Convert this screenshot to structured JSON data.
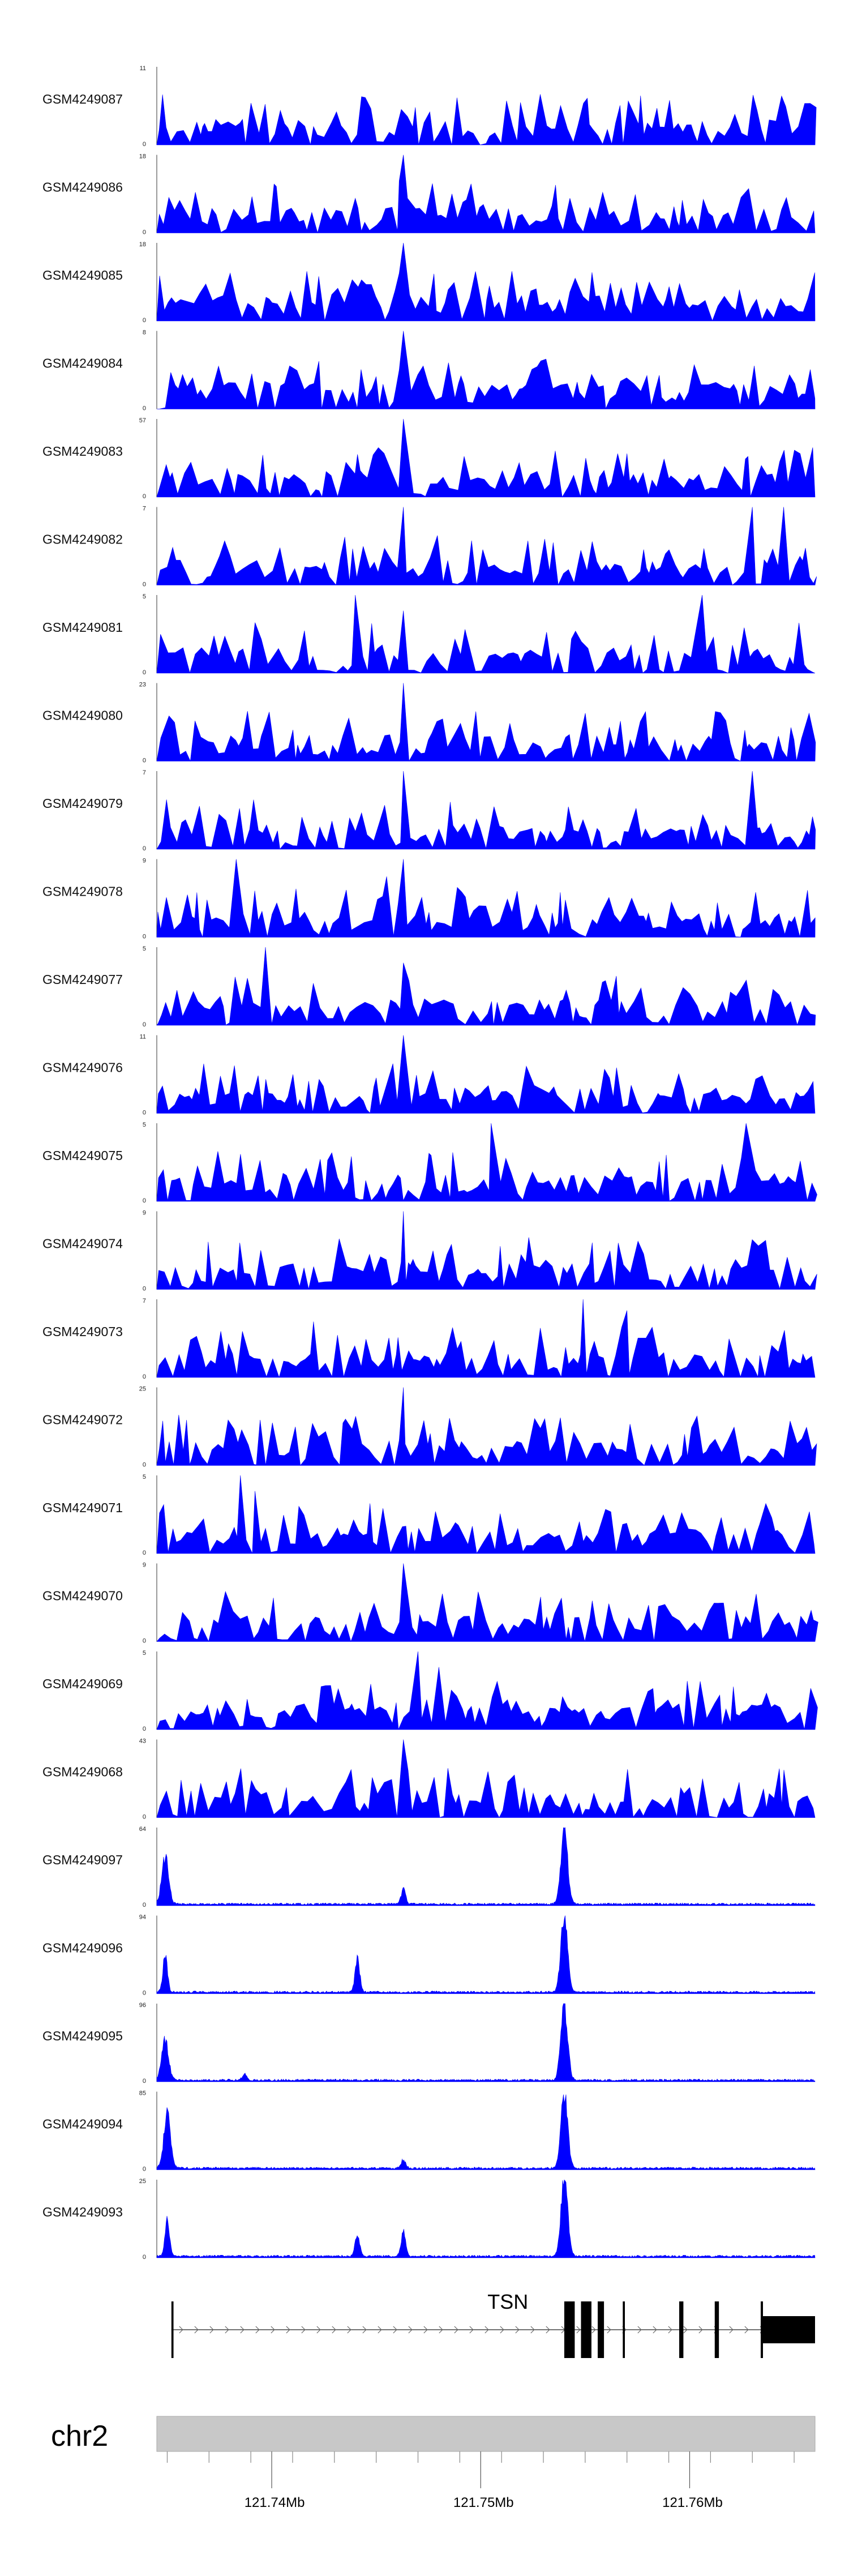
{
  "chart_data": {
    "type": "area",
    "chromosome": "chr2",
    "region_mb": [
      121.7345,
      121.766
    ],
    "x_ticks": [
      121.74,
      121.75,
      121.76
    ],
    "x_tick_labels": [
      "121.74Mb",
      "121.75Mb",
      "121.76Mb"
    ],
    "fill_color": "#0000ff",
    "tracks": [
      {
        "name": "GSM4249087",
        "ymin": 0,
        "ymax": 11,
        "profile": "noisy",
        "peaks": [
          [
            121.7463,
            11
          ],
          [
            121.7462,
            5
          ],
          [
            121.7465,
            4
          ]
        ]
      },
      {
        "name": "GSM4249086",
        "ymin": 0,
        "ymax": 18,
        "profile": "noisy",
        "peaks": [
          [
            121.7463,
            18
          ],
          [
            121.7461,
            12
          ],
          [
            121.7465,
            8
          ],
          [
            121.744,
            8
          ]
        ]
      },
      {
        "name": "GSM4249085",
        "ymin": 0,
        "ymax": 18,
        "profile": "noisy",
        "peaks": [
          [
            121.7463,
            18
          ],
          [
            121.7461,
            11
          ],
          [
            121.7459,
            7
          ],
          [
            121.7466,
            6
          ]
        ]
      },
      {
        "name": "GSM4249084",
        "ymin": 0,
        "ymax": 8,
        "profile": "noisy",
        "peaks": [
          [
            121.7463,
            8
          ],
          [
            121.7461,
            4
          ]
        ]
      },
      {
        "name": "GSM4249083",
        "ymin": 0,
        "ymax": 57,
        "profile": "noisy",
        "peaks": [
          [
            121.7463,
            57
          ]
        ]
      },
      {
        "name": "GSM4249082",
        "ymin": 0,
        "ymax": 7,
        "profile": "noisy",
        "peaks": [
          [
            121.7463,
            7
          ],
          [
            121.763,
            7
          ],
          [
            121.7645,
            7
          ]
        ]
      },
      {
        "name": "GSM4249081",
        "ymin": 0,
        "ymax": 5,
        "profile": "noisy",
        "peaks": [
          [
            121.744,
            5
          ],
          [
            121.7606,
            5
          ],
          [
            121.7463,
            4
          ]
        ]
      },
      {
        "name": "GSM4249080",
        "ymin": 0,
        "ymax": 23,
        "profile": "noisy",
        "peaks": [
          [
            121.7463,
            23
          ]
        ]
      },
      {
        "name": "GSM4249079",
        "ymin": 0,
        "ymax": 7,
        "profile": "noisy",
        "peaks": [
          [
            121.7463,
            7
          ],
          [
            121.763,
            7
          ]
        ]
      },
      {
        "name": "GSM4249078",
        "ymin": 0,
        "ymax": 9,
        "profile": "noisy",
        "peaks": [
          [
            121.7383,
            9
          ],
          [
            121.7463,
            9
          ],
          [
            121.7455,
            7
          ]
        ]
      },
      {
        "name": "GSM4249077",
        "ymin": 0,
        "ymax": 5,
        "profile": "noisy",
        "peaks": [
          [
            121.7397,
            5
          ],
          [
            121.7463,
            4
          ]
        ]
      },
      {
        "name": "GSM4249076",
        "ymin": 0,
        "ymax": 11,
        "profile": "noisy",
        "peaks": [
          [
            121.7463,
            11
          ],
          [
            121.7458,
            7
          ],
          [
            121.745,
            5
          ]
        ]
      },
      {
        "name": "GSM4249075",
        "ymin": 0,
        "ymax": 5,
        "profile": "noisy",
        "peaks": [
          [
            121.7505,
            5
          ],
          [
            121.7627,
            5
          ]
        ]
      },
      {
        "name": "GSM4249074",
        "ymin": 0,
        "ymax": 9,
        "profile": "noisy",
        "peaks": [
          [
            121.7463,
            9
          ],
          [
            121.7523,
            6
          ]
        ]
      },
      {
        "name": "GSM4249073",
        "ymin": 0,
        "ymax": 7,
        "profile": "noisy",
        "peaks": [
          [
            121.7549,
            7
          ],
          [
            121.757,
            6
          ],
          [
            121.742,
            5
          ]
        ]
      },
      {
        "name": "GSM4249072",
        "ymin": 0,
        "ymax": 25,
        "profile": "noisy",
        "peaks": [
          [
            121.7463,
            25
          ],
          [
            121.7461,
            8
          ]
        ]
      },
      {
        "name": "GSM4249071",
        "ymin": 0,
        "ymax": 5,
        "profile": "noisy",
        "peaks": [
          [
            121.7385,
            5
          ],
          [
            121.7392,
            4
          ]
        ]
      },
      {
        "name": "GSM4249070",
        "ymin": 0,
        "ymax": 9,
        "profile": "noisy",
        "peaks": [
          [
            121.7463,
            9
          ]
        ]
      },
      {
        "name": "GSM4249069",
        "ymin": 0,
        "ymax": 5,
        "profile": "noisy",
        "peaks": [
          [
            121.747,
            5
          ],
          [
            121.748,
            4
          ]
        ]
      },
      {
        "name": "GSM4249068",
        "ymin": 0,
        "ymax": 43,
        "profile": "noisy",
        "peaks": [
          [
            121.7463,
            43
          ],
          [
            121.75,
            8
          ]
        ]
      },
      {
        "name": "GSM4249097",
        "ymin": 0,
        "ymax": 64,
        "profile": "smooth",
        "peaks": [
          [
            121.7349,
            40
          ],
          [
            121.754,
            64
          ],
          [
            121.7463,
            12
          ]
        ]
      },
      {
        "name": "GSM4249096",
        "ymin": 0,
        "ymax": 94,
        "profile": "smooth",
        "peaks": [
          [
            121.7349,
            45
          ],
          [
            121.7441,
            45
          ],
          [
            121.754,
            94
          ]
        ]
      },
      {
        "name": "GSM4249095",
        "ymin": 0,
        "ymax": 96,
        "profile": "smooth",
        "peaks": [
          [
            121.7349,
            50
          ],
          [
            121.754,
            96
          ],
          [
            121.7387,
            8
          ]
        ]
      },
      {
        "name": "GSM4249094",
        "ymin": 0,
        "ymax": 85,
        "profile": "smooth",
        "peaks": [
          [
            121.735,
            60
          ],
          [
            121.754,
            85
          ],
          [
            121.7463,
            10
          ]
        ]
      },
      {
        "name": "GSM4249093",
        "ymin": 0,
        "ymax": 25,
        "profile": "smooth",
        "peaks": [
          [
            121.735,
            12
          ],
          [
            121.7441,
            7
          ],
          [
            121.7463,
            8
          ],
          [
            121.754,
            25
          ]
        ]
      }
    ],
    "gene": {
      "name": "TSN",
      "strand": "+",
      "start_mb": 121.7352,
      "end_mb": 121.766,
      "exons_mb": [
        [
          121.7352,
          121.7353
        ],
        [
          121.754,
          121.7545
        ],
        [
          121.7548,
          121.7553
        ],
        [
          121.7556,
          121.7559
        ],
        [
          121.7568,
          121.7569
        ],
        [
          121.7595,
          121.7597
        ],
        [
          121.7612,
          121.7614
        ],
        [
          121.7634,
          121.766
        ]
      ]
    }
  }
}
